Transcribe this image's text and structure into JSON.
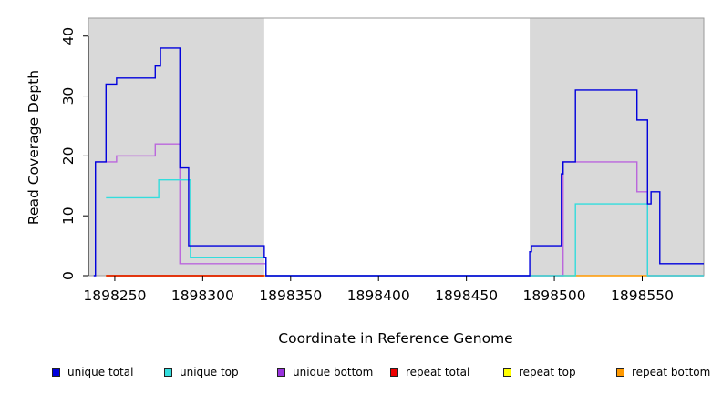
{
  "chart_data": {
    "type": "line",
    "title": "",
    "xlabel": "Coordinate in Reference Genome",
    "ylabel": "Read Coverage Depth",
    "xlim": [
      1898235,
      1898585
    ],
    "ylim": [
      0,
      43
    ],
    "x_ticks": [
      1898250,
      1898300,
      1898350,
      1898400,
      1898450,
      1898500,
      1898550
    ],
    "x_tick_labels": [
      "1898250",
      "1898300",
      "1898350",
      "1898400",
      "1898450",
      "1898500",
      "1898550"
    ],
    "y_ticks": [
      0,
      10,
      20,
      30,
      40
    ],
    "y_tick_labels": [
      "0",
      "10",
      "20",
      "30",
      "40"
    ],
    "shaded_regions": [
      [
        1898235,
        1898335
      ],
      [
        1898486,
        1898585
      ]
    ],
    "grid": false,
    "legend_position": "bottom",
    "series": [
      {
        "name": "unique total",
        "color": "#0000dd",
        "step": true,
        "x": [
          1898238,
          1898239,
          1898245,
          1898251,
          1898257,
          1898273,
          1898276,
          1898287,
          1898292,
          1898335,
          1898336,
          1898486,
          1898487,
          1898504,
          1898505,
          1898507,
          1898512,
          1898547,
          1898553,
          1898555,
          1898560,
          1898585
        ],
        "y": [
          0,
          19,
          32,
          33,
          33,
          35,
          38,
          18,
          5,
          3,
          0,
          4,
          5,
          17,
          19,
          19,
          31,
          26,
          12,
          14,
          2,
          2
        ]
      },
      {
        "name": "unique top",
        "color": "#33dddd",
        "step": true,
        "x": [
          1898245,
          1898275,
          1898293,
          1898336,
          1898512,
          1898553,
          1898585
        ],
        "y": [
          13,
          16,
          3,
          0,
          12,
          0,
          0
        ]
      },
      {
        "name": "unique bottom",
        "color": "#bb66dd",
        "step": true,
        "x": [
          1898239,
          1898251,
          1898273,
          1898287,
          1898336,
          1898505,
          1898547,
          1898553,
          1898585
        ],
        "y": [
          19,
          20,
          22,
          2,
          0,
          19,
          14,
          0,
          0
        ]
      },
      {
        "name": "repeat total",
        "color": "#dd0000",
        "step": true,
        "x": [
          1898245,
          1898335
        ],
        "y": [
          0,
          0
        ]
      },
      {
        "name": "repeat top",
        "color": "#eeee00",
        "step": true,
        "x": [
          1898245,
          1898335
        ],
        "y": [
          0,
          0
        ]
      },
      {
        "name": "repeat bottom",
        "color": "#ff9900",
        "step": true,
        "x": [
          1898245,
          1898336,
          1898486,
          1898585
        ],
        "y": [
          0,
          0,
          0,
          0
        ]
      }
    ]
  },
  "legend": [
    {
      "label": "unique total",
      "color": "#0000dd"
    },
    {
      "label": "unique top",
      "color": "#33dddd"
    },
    {
      "label": "unique bottom",
      "color": "#9933dd"
    },
    {
      "label": "repeat total",
      "color": "#ee0000"
    },
    {
      "label": "repeat top",
      "color": "#ffff00"
    },
    {
      "label": "repeat bottom",
      "color": "#ff9900"
    }
  ]
}
